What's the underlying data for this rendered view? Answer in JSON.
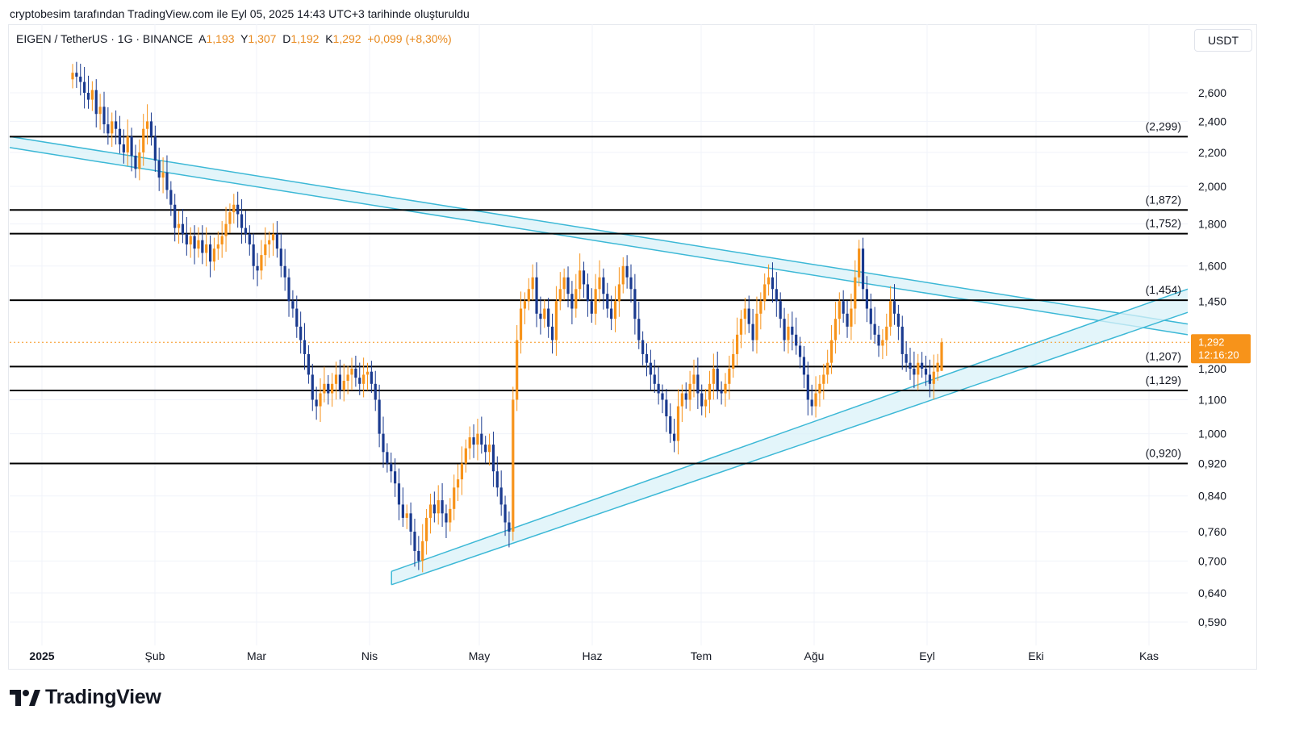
{
  "header": {
    "caption": "cryptobesim tarafından TradingView.com ile Eyl 05, 2025 14:43 UTC+3 tarihinde oluşturuldu"
  },
  "legend": {
    "symbol": "EIGEN / TetherUS · 1G · BINANCE",
    "open_label": "A",
    "open": "1,193",
    "high_label": "Y",
    "high": "1,307",
    "low_label": "D",
    "low": "1,192",
    "close_label": "K",
    "close": "1,292",
    "change": "+0,099 (+8,30%)"
  },
  "currency": "USDT",
  "brand": {
    "name": "TradingView"
  },
  "colors": {
    "up": "#f7931a",
    "down": "#1a3a8f",
    "level": "#000000",
    "channel": "#3cb8d6",
    "channel_fill": "#d9f1f8",
    "price_tag": "#f7931a",
    "grid": "#f0f3fa"
  },
  "chart_data": {
    "type": "candlestick",
    "x_axis": [
      "2025",
      "Şub",
      "Mar",
      "Nis",
      "May",
      "Haz",
      "Tem",
      "Ağu",
      "Eyl",
      "Eki",
      "Kas"
    ],
    "y_ticks": [
      "2,600",
      "2,400",
      "2,200",
      "2,000",
      "1,800",
      "1,600",
      "1,450",
      "1,200",
      "1,100",
      "1,000",
      "0,920",
      "0,840",
      "0,760",
      "0,700",
      "0,640",
      "0,590"
    ],
    "y_tick_values": [
      2.6,
      2.4,
      2.2,
      2.0,
      1.8,
      1.6,
      1.45,
      1.2,
      1.1,
      1.0,
      0.92,
      0.84,
      0.76,
      0.7,
      0.64,
      0.59
    ],
    "y_scale": "log",
    "horizontal_levels": [
      {
        "value": 2.299,
        "label": "(2,299)"
      },
      {
        "value": 1.872,
        "label": "(1,872)"
      },
      {
        "value": 1.752,
        "label": "(1,752)"
      },
      {
        "value": 1.454,
        "label": "(1,454)"
      },
      {
        "value": 1.207,
        "label": "(1,207)"
      },
      {
        "value": 1.129,
        "label": "(1,129)"
      },
      {
        "value": 0.92,
        "label": "(0,920)"
      }
    ],
    "current_price": {
      "value": 1.292,
      "label": "1,292",
      "countdown": "12:16:20"
    },
    "trend_channels": [
      {
        "name": "descending",
        "from": {
          "date": "2025-01-01",
          "upper": 2.3,
          "lower": 2.23
        },
        "to": {
          "date": "2025-11-17",
          "upper": 1.36,
          "lower": 1.32
        }
      },
      {
        "name": "ascending",
        "from": {
          "date": "2025-04-07",
          "upper": 0.68,
          "lower": 0.655
        },
        "to": {
          "date": "2025-11-17",
          "upper": 1.5,
          "lower": 1.405
        }
      }
    ],
    "closes": [
      2.75,
      2.72,
      2.68,
      2.6,
      2.55,
      2.62,
      2.45,
      2.5,
      2.38,
      2.32,
      2.4,
      2.35,
      2.25,
      2.2,
      2.3,
      2.18,
      2.1,
      2.2,
      2.35,
      2.4,
      2.3,
      2.15,
      2.05,
      2.08,
      1.98,
      1.9,
      1.78,
      1.8,
      1.75,
      1.7,
      1.74,
      1.68,
      1.72,
      1.66,
      1.7,
      1.62,
      1.68,
      1.7,
      1.74,
      1.8,
      1.86,
      1.9,
      1.85,
      1.78,
      1.75,
      1.7,
      1.6,
      1.58,
      1.65,
      1.7,
      1.72,
      1.75,
      1.68,
      1.6,
      1.55,
      1.45,
      1.42,
      1.35,
      1.3,
      1.25,
      1.18,
      1.1,
      1.08,
      1.12,
      1.15,
      1.12,
      1.15,
      1.18,
      1.13,
      1.16,
      1.18,
      1.2,
      1.17,
      1.15,
      1.18,
      1.19,
      1.15,
      1.1,
      1.0,
      0.95,
      0.92,
      0.9,
      0.87,
      0.82,
      0.79,
      0.8,
      0.76,
      0.72,
      0.7,
      0.74,
      0.79,
      0.82,
      0.8,
      0.83,
      0.8,
      0.78,
      0.81,
      0.86,
      0.88,
      0.92,
      0.96,
      0.99,
      0.97,
      1.0,
      0.97,
      0.95,
      0.97,
      0.9,
      0.86,
      0.82,
      0.78,
      0.76,
      1.1,
      1.3,
      1.42,
      1.45,
      1.5,
      1.55,
      1.4,
      1.38,
      1.42,
      1.35,
      1.3,
      1.45,
      1.5,
      1.55,
      1.48,
      1.42,
      1.5,
      1.58,
      1.52,
      1.45,
      1.4,
      1.5,
      1.55,
      1.48,
      1.42,
      1.38,
      1.45,
      1.52,
      1.6,
      1.55,
      1.5,
      1.38,
      1.3,
      1.25,
      1.22,
      1.18,
      1.15,
      1.12,
      1.1,
      1.05,
      1.0,
      0.98,
      1.08,
      1.12,
      1.1,
      1.15,
      1.18,
      1.12,
      1.08,
      1.1,
      1.15,
      1.2,
      1.13,
      1.12,
      1.15,
      1.2,
      1.25,
      1.32,
      1.38,
      1.42,
      1.36,
      1.3,
      1.4,
      1.45,
      1.52,
      1.55,
      1.5,
      1.45,
      1.38,
      1.3,
      1.35,
      1.32,
      1.28,
      1.24,
      1.18,
      1.1,
      1.08,
      1.12,
      1.15,
      1.18,
      1.22,
      1.3,
      1.38,
      1.45,
      1.4,
      1.35,
      1.42,
      1.55,
      1.68,
      1.5,
      1.42,
      1.36,
      1.32,
      1.28,
      1.3,
      1.35,
      1.45,
      1.4,
      1.35,
      1.25,
      1.22,
      1.2,
      1.18,
      1.22,
      1.2,
      1.18,
      1.15,
      1.19,
      1.22,
      1.292
    ]
  }
}
